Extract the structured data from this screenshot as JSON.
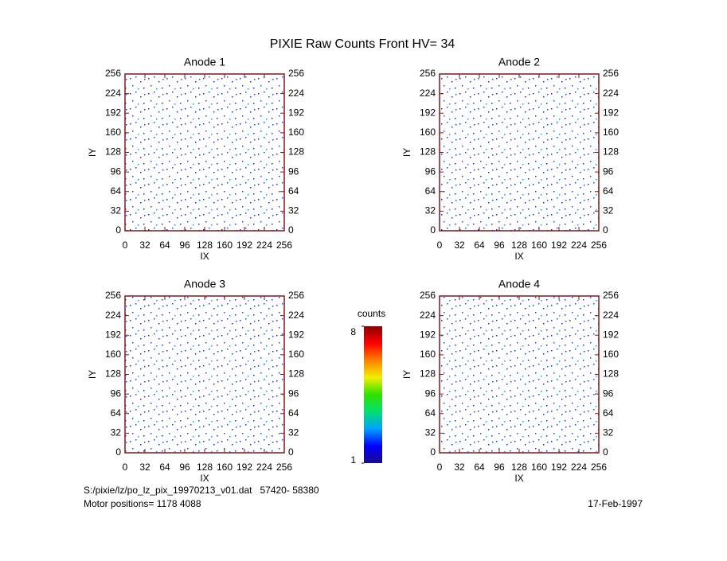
{
  "title": "PIXIE Raw Counts Front HV= 34",
  "chart_data": [
    {
      "type": "heatmap",
      "title": "Anode 1",
      "x_label": "IX",
      "y_label": "IY",
      "xlim": [
        0,
        256
      ],
      "xticks": [
        0,
        32,
        64,
        96,
        128,
        160,
        192,
        224,
        256
      ],
      "ylim": [
        0,
        256
      ],
      "yticks": [
        0,
        32,
        64,
        96,
        128,
        160,
        192,
        224,
        256
      ]
    },
    {
      "type": "heatmap",
      "title": "Anode 2",
      "x_label": "IX",
      "y_label": "IY",
      "xlim": [
        0,
        256
      ],
      "xticks": [
        0,
        32,
        64,
        96,
        128,
        160,
        192,
        224,
        256
      ],
      "ylim": [
        0,
        256
      ],
      "yticks": [
        0,
        32,
        64,
        96,
        128,
        160,
        192,
        224,
        256
      ]
    },
    {
      "type": "heatmap",
      "title": "Anode 3",
      "x_label": "IX",
      "y_label": "IY",
      "xlim": [
        0,
        256
      ],
      "xticks": [
        0,
        32,
        64,
        96,
        128,
        160,
        192,
        224,
        256
      ],
      "ylim": [
        0,
        256
      ],
      "yticks": [
        0,
        32,
        64,
        96,
        128,
        160,
        192,
        224,
        256
      ]
    },
    {
      "type": "heatmap",
      "title": "Anode 4",
      "x_label": "IX",
      "y_label": "IY",
      "xlim": [
        0,
        256
      ],
      "xticks": [
        0,
        32,
        64,
        96,
        128,
        160,
        192,
        224,
        256
      ],
      "ylim": [
        0,
        256
      ],
      "yticks": [
        0,
        32,
        64,
        96,
        128,
        160,
        192,
        224,
        256
      ]
    }
  ],
  "colorbar": {
    "label": "counts",
    "lim": [
      1,
      8
    ],
    "ticks": [
      1,
      8
    ],
    "colors": [
      "#1a0a8c",
      "#0000ff",
      "#00a0ff",
      "#00e070",
      "#30e000",
      "#f0f000",
      "#ff8000",
      "#ff0000",
      "#8b0000"
    ]
  },
  "footer": {
    "file": "S:/pixie/lz/po_lz_pix_19970213_v01.dat   57420- 58380",
    "motor": "Motor positions= 1178 4088",
    "date": "17-Feb-1997"
  }
}
